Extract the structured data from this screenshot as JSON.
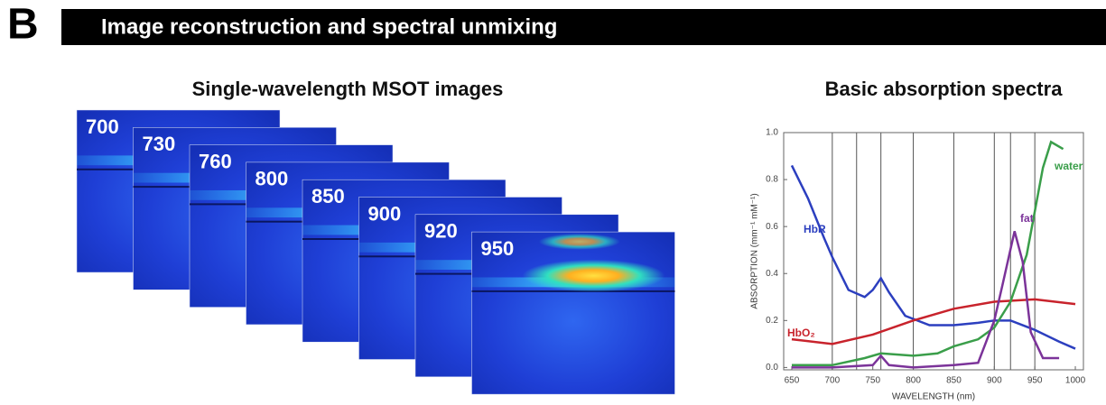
{
  "header": {
    "panel": "B",
    "title": "Image reconstruction and spectral unmixing"
  },
  "left_title": "Single-wavelength MSOT images",
  "chart_data": {
    "type": "line",
    "title": "Basic absorption spectra",
    "xlabel": "WAVELENGTH (nm)",
    "ylabel": "ABSORPTION (mm⁻¹ mM⁻¹)",
    "xlim": [
      640,
      1010
    ],
    "ylim": [
      -0.01,
      1.0
    ],
    "xticks": [
      650,
      700,
      750,
      800,
      850,
      900,
      950,
      1000
    ],
    "yticks": [
      {
        "value": 0,
        "label": "0.0"
      },
      0.2,
      0.4,
      0.6,
      0.8,
      {
        "value": 1,
        "label": "1.0"
      }
    ],
    "wavelength_lines": [
      700,
      730,
      760,
      800,
      850,
      900,
      920,
      950
    ],
    "series": [
      {
        "name": "HbR",
        "color": "#2c3fbf",
        "x": [
          650,
          670,
          690,
          700,
          720,
          740,
          750,
          760,
          770,
          790,
          820,
          850,
          880,
          900,
          920,
          950,
          980,
          1000
        ],
        "values": [
          0.86,
          0.72,
          0.55,
          0.47,
          0.33,
          0.3,
          0.33,
          0.38,
          0.32,
          0.22,
          0.18,
          0.18,
          0.19,
          0.2,
          0.2,
          0.16,
          0.11,
          0.08
        ]
      },
      {
        "name": "HbO₂",
        "color": "#c8232c",
        "x": [
          650,
          700,
          750,
          800,
          850,
          900,
          950,
          1000
        ],
        "values": [
          0.12,
          0.1,
          0.14,
          0.2,
          0.25,
          0.28,
          0.29,
          0.27
        ]
      },
      {
        "name": "water",
        "color": "#3a9e4a",
        "x": [
          650,
          700,
          740,
          760,
          800,
          830,
          850,
          880,
          900,
          920,
          940,
          960,
          970,
          985
        ],
        "values": [
          0.01,
          0.01,
          0.04,
          0.06,
          0.05,
          0.06,
          0.09,
          0.12,
          0.17,
          0.28,
          0.48,
          0.85,
          0.96,
          0.93
        ]
      },
      {
        "name": "fat",
        "color": "#7b3399",
        "x": [
          650,
          700,
          750,
          760,
          770,
          800,
          850,
          880,
          900,
          910,
          925,
          935,
          945,
          960,
          980
        ],
        "values": [
          0.0,
          0.0,
          0.01,
          0.05,
          0.01,
          0.0,
          0.01,
          0.02,
          0.2,
          0.35,
          0.58,
          0.45,
          0.15,
          0.04,
          0.04
        ]
      }
    ]
  }
}
